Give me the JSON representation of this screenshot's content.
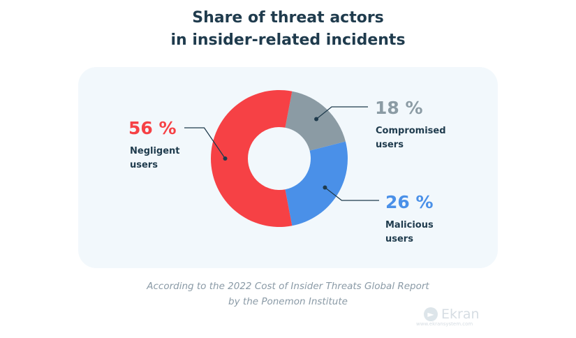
{
  "chart_data": {
    "type": "pie",
    "title_lines": [
      "Share of threat actors",
      "in insider-related incidents"
    ],
    "hole": true,
    "slices": [
      {
        "label_lines": [
          "Compromised",
          "users"
        ],
        "value": 18,
        "display": "18 %",
        "color": "#8b9ba4"
      },
      {
        "label_lines": [
          "Malicious",
          "users"
        ],
        "value": 26,
        "display": "26 %",
        "color": "#4a90e8"
      },
      {
        "label_lines": [
          "Negligent",
          "users"
        ],
        "value": 56,
        "display": "56 %",
        "color": "#f64145"
      }
    ],
    "legend": "none"
  },
  "footnote_lines": [
    "According to the 2022 Cost of Insider Threats Global Report",
    "by the Ponemon Institute"
  ],
  "logo": {
    "name": "Ekran",
    "url": "www.ekransystem.com"
  }
}
